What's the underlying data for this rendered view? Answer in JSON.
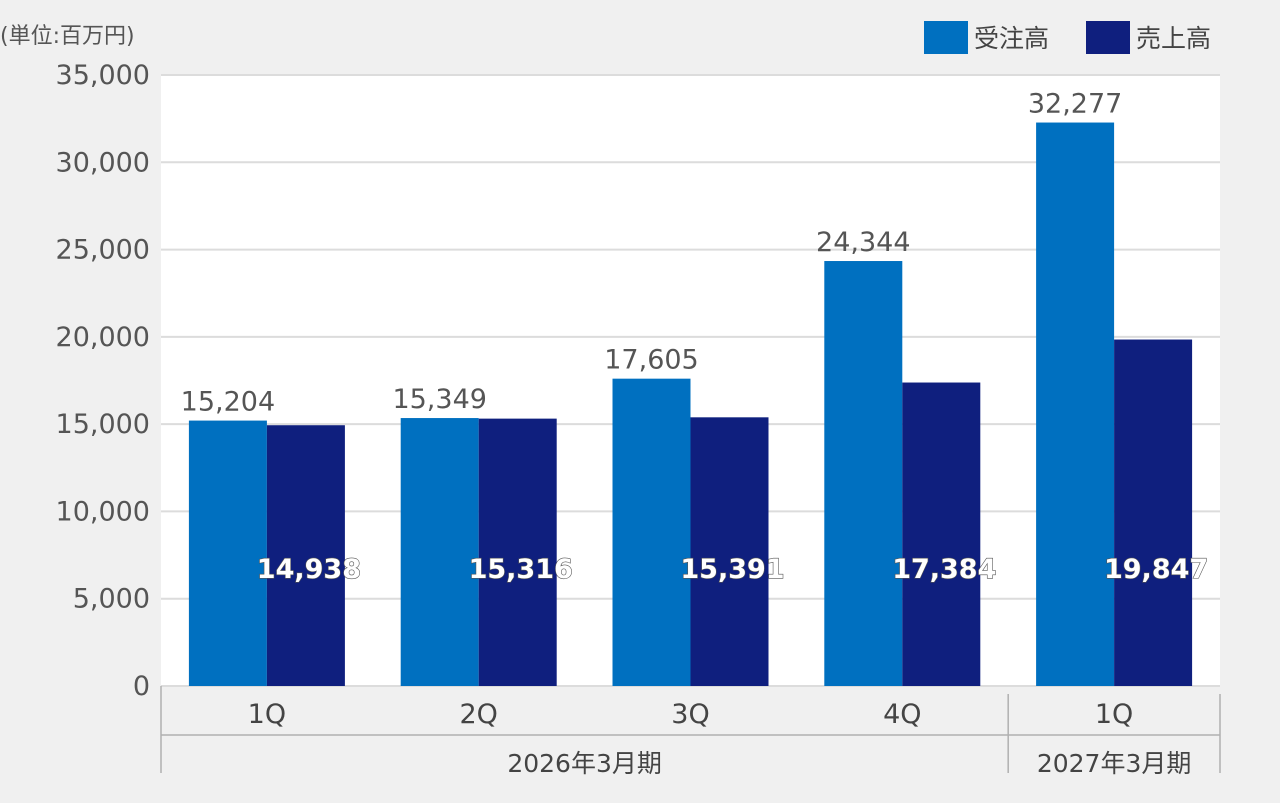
{
  "chart_data": {
    "type": "bar",
    "unit_label": "(単位:百万円)",
    "title": "",
    "xlabel": "",
    "ylabel": "",
    "ylim": [
      0,
      35000
    ],
    "yticks": [
      "0",
      "5,000",
      "10,000",
      "15,000",
      "20,000",
      "25,000",
      "30,000",
      "35,000"
    ],
    "ytick_values": [
      0,
      5000,
      10000,
      15000,
      20000,
      25000,
      30000,
      35000
    ],
    "grid": true,
    "legend_position": "top-right",
    "categories": [
      "1Q",
      "2Q",
      "3Q",
      "4Q",
      "1Q"
    ],
    "groups": [
      {
        "label": "2026年3月期",
        "count": 4
      },
      {
        "label": "2027年3月期",
        "count": 1
      }
    ],
    "series": [
      {
        "name": "受注高",
        "color": "#0070c0",
        "values": [
          15204,
          15349,
          17605,
          24344,
          32277
        ],
        "labels": [
          "15,204",
          "15,349",
          "17,605",
          "24,344",
          "32,277"
        ]
      },
      {
        "name": "売上高",
        "color": "#0f1f7e",
        "values": [
          14938,
          15316,
          15391,
          17384,
          19847
        ],
        "labels": [
          "14,938",
          "15,316",
          "15,391",
          "17,384",
          "19,847"
        ]
      }
    ]
  }
}
